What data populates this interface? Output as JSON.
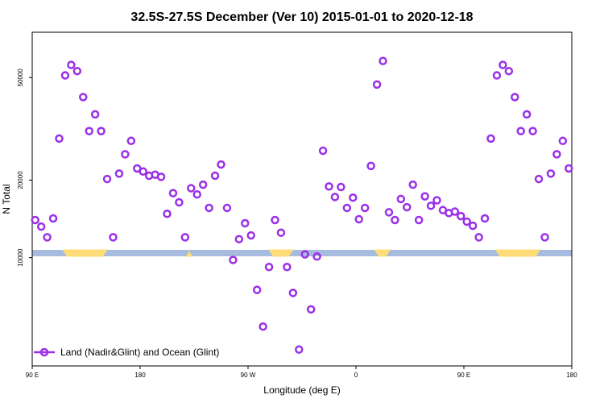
{
  "chart_data": {
    "type": "scatter",
    "title": "32.5S-27.5S December (Ver 10)   2015-01-01 to 2020-12-18",
    "xlabel": "Longitude (deg E)",
    "ylabel": "N Total",
    "x_ticks": [
      {
        "value": 90,
        "label": "90 E"
      },
      {
        "value": 180,
        "label": "180"
      },
      {
        "value": 270,
        "label": "90 W"
      },
      {
        "value": 360,
        "label": "0"
      },
      {
        "value": 450,
        "label": "90 E"
      },
      {
        "value": 540,
        "label": "180"
      }
    ],
    "y_ticks": [
      10000,
      20000,
      50000
    ],
    "xlim": [
      90,
      540
    ],
    "y_scale": "log",
    "ylim": [
      3800,
      75000
    ],
    "grid": false,
    "legend": {
      "position": "bottom-left",
      "entries": [
        "Land (Nadir&Glint) and Ocean (Glint)"
      ]
    },
    "series": [
      {
        "name": "Land (Nadir&Glint) and Ocean (Glint)",
        "color": "#9b30e8",
        "x": [
          92.5,
          97.5,
          102.5,
          107.5,
          112.5,
          117.5,
          122.5,
          127.5,
          132.5,
          137.5,
          142.5,
          147.5,
          152.5,
          157.5,
          162.5,
          167.5,
          172.5,
          177.5,
          182.5,
          187.5,
          192.5,
          197.5,
          202.5,
          207.5,
          212.5,
          217.5,
          222.5,
          227.5,
          232.5,
          237.5,
          242.5,
          247.5,
          252.5,
          257.5,
          262.5,
          267.5,
          272.5,
          277.5,
          282.5,
          287.5,
          292.5,
          297.5,
          302.5,
          307.5,
          312.5,
          317.5,
          322.5,
          327.5,
          332.5,
          337.5,
          342.5,
          347.5,
          352.5,
          357.5,
          362.5,
          367.5,
          372.5,
          377.5,
          382.5,
          387.5,
          392.5,
          397.5,
          402.5,
          407.5,
          412.5,
          417.5,
          422.5,
          427.5,
          432.5,
          437.5,
          442.5,
          447.5,
          452.5,
          457.5,
          462.5,
          467.5,
          472.5,
          477.5,
          482.5,
          487.5,
          492.5,
          497.5,
          502.5,
          507.5,
          512.5,
          517.5,
          522.5,
          527.5,
          532.5,
          537.5
        ],
        "y": [
          14000,
          13200,
          12000,
          14200,
          29000,
          51000,
          56000,
          53000,
          42000,
          31000,
          36000,
          31000,
          20200,
          12000,
          21200,
          25200,
          28400,
          22200,
          21600,
          20800,
          21000,
          20600,
          14800,
          17800,
          16400,
          12000,
          18600,
          17600,
          19200,
          15600,
          20800,
          23000,
          15600,
          9800,
          11800,
          13600,
          12200,
          7500,
          5400,
          9200,
          14000,
          12500,
          9200,
          7300,
          4400,
          10300,
          6300,
          10100,
          26000,
          18900,
          17200,
          18800,
          15600,
          17100,
          14100,
          15600,
          22700,
          47000,
          58000,
          15000,
          14000,
          16900,
          15700,
          19200,
          14000,
          17300,
          15900,
          16700,
          15300,
          14900,
          15100,
          14500,
          13800,
          13300,
          12000,
          14200,
          29000,
          51000,
          56000,
          53000,
          42000,
          31000,
          36000,
          31000,
          20200,
          12000,
          21200,
          25200,
          28400,
          22200
        ]
      }
    ],
    "land_ocean_bar": {
      "ocean_color": "#a7bbde",
      "land_color": "#ffdc78",
      "land_segments_lon": [
        [
          115,
          153
        ],
        [
          220,
          222
        ],
        [
          287,
          308
        ],
        [
          375,
          389
        ],
        [
          476,
          514
        ]
      ]
    }
  }
}
